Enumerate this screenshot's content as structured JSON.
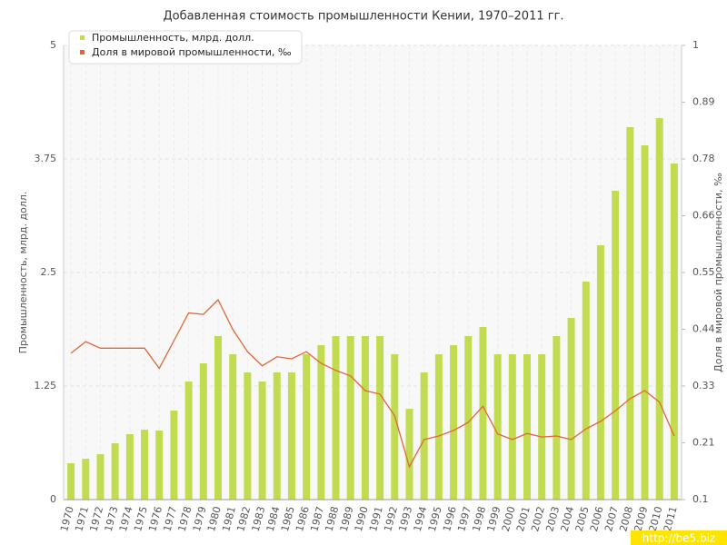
{
  "chart_data": {
    "type": "bar-line",
    "title": "Добавленная стоимость промышленности Кении, 1970–2011 гг.",
    "y_label": "Промышленность, млрд. долл.",
    "y2_label": "Доля в мировой промышленности, ‰",
    "watermark": "http://be5.biz",
    "grid": true,
    "legend": "top-left",
    "categories": [
      "1970",
      "1971",
      "1972",
      "1973",
      "1974",
      "1975",
      "1976",
      "1977",
      "1978",
      "1979",
      "1980",
      "1981",
      "1982",
      "1983",
      "1984",
      "1985",
      "1986",
      "1987",
      "1988",
      "1989",
      "1990",
      "1991",
      "1992",
      "1993",
      "1994",
      "1995",
      "1996",
      "1997",
      "1998",
      "1999",
      "2000",
      "2001",
      "2002",
      "2003",
      "2004",
      "2005",
      "2006",
      "2007",
      "2008",
      "2009",
      "2010",
      "2011"
    ],
    "ylim": [
      0,
      5
    ],
    "yticks": [
      0,
      1.25,
      2.5,
      3.75,
      5
    ],
    "y2lim": [
      0.1,
      1
    ],
    "y2ticks": [
      0.1,
      {
        "value": 0.2125,
        "label": "0.21"
      },
      {
        "value": 0.325,
        "label": "0.33"
      },
      {
        "value": 0.4375,
        "label": "0.44"
      },
      0.55,
      {
        "value": 0.6625,
        "label": "0.66"
      },
      {
        "value": 0.775,
        "label": "0.78"
      },
      {
        "value": 0.8875,
        "label": "0.89"
      },
      1
    ],
    "series": [
      {
        "name": "Промышленность, млрд. долл.",
        "color": "#c2dc52",
        "kind": "bar",
        "values": [
          0.4,
          0.45,
          0.5,
          0.62,
          0.72,
          0.77,
          0.76,
          0.98,
          1.3,
          1.5,
          1.8,
          1.6,
          1.4,
          1.3,
          1.4,
          1.4,
          1.6,
          1.7,
          1.8,
          1.8,
          1.8,
          1.8,
          1.6,
          1.0,
          1.4,
          1.6,
          1.7,
          1.8,
          1.9,
          1.6,
          1.6,
          1.6,
          1.6,
          1.8,
          2.0,
          2.4,
          2.8,
          3.4,
          4.1,
          3.9,
          4.2,
          3.7
        ]
      },
      {
        "name": "Доля в мировой промышленности, ‰",
        "color": "#e0663a",
        "kind": "line",
        "axis": "y2",
        "values": [
          0.39,
          0.413,
          0.4,
          0.4,
          0.4,
          0.4,
          0.36,
          0.415,
          0.47,
          0.467,
          0.496,
          0.437,
          0.393,
          0.365,
          0.383,
          0.379,
          0.393,
          0.37,
          0.356,
          0.345,
          0.316,
          0.309,
          0.266,
          0.165,
          0.219,
          0.226,
          0.237,
          0.253,
          0.285,
          0.23,
          0.219,
          0.231,
          0.224,
          0.226,
          0.219,
          0.24,
          0.255,
          0.276,
          0.3,
          0.316,
          0.293,
          0.226
        ]
      }
    ]
  }
}
